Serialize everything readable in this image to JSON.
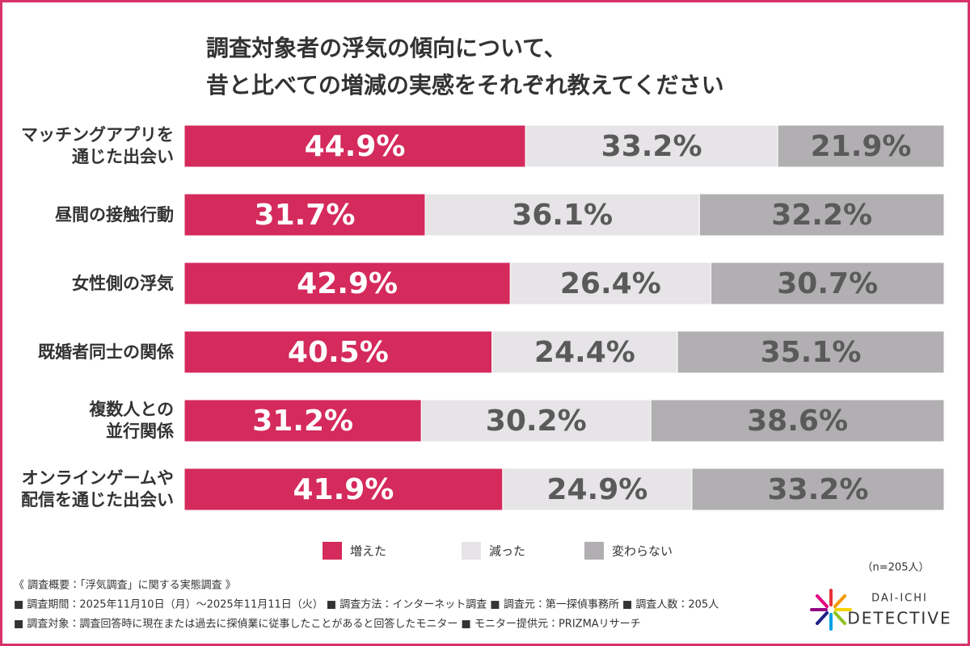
{
  "chart_data": {
    "type": "stacked-bar-horizontal",
    "title": [
      "調査対象者の浮気の傾向について、",
      "昔と比べての増減の実感をそれぞれ教えてください"
    ],
    "categories": [
      "マッチングアプリを\n通じた出会い",
      "昼間の接触行動",
      "女性側の浮気",
      "既婚者同士の関係",
      "複数人との\n並行関係",
      "オンラインゲームや\n配信を通じた出会い"
    ],
    "series": [
      {
        "name": "増えた",
        "color": "#d42a5c",
        "label_color": "#ffffff",
        "values": [
          44.9,
          31.7,
          42.9,
          40.5,
          31.2,
          41.9
        ],
        "value_labels": [
          "44.9%",
          "31.7%",
          "42.9%",
          "40.5%",
          "31.2%",
          "41.9%"
        ]
      },
      {
        "name": "減った",
        "color": "#e6e4e7",
        "label_color": "#5a5a5a",
        "values": [
          33.2,
          36.1,
          26.4,
          24.4,
          30.2,
          24.9
        ],
        "value_labels": [
          "33.2%",
          "36.1%",
          "26.4%",
          "24.4%",
          "30.2%",
          "24.9%"
        ]
      },
      {
        "name": "変わらない",
        "color": "#b1afb1",
        "label_color": "#5a5a5a",
        "values": [
          21.9,
          32.2,
          30.7,
          35.1,
          38.6,
          33.2
        ],
        "value_labels": [
          "21.9%",
          "32.2%",
          "30.7%",
          "35.1%",
          "38.6%",
          "33.2%"
        ]
      }
    ],
    "note": "（n=205人）"
  },
  "footer": {
    "lines": [
      "《 調査概要：「浮気調査」に関する実態調査 》",
      "■ 調査期間：2025年11月10日（月）〜2025年11月11日（火） ■ 調査方法：インターネット調査 ■ 調査元：第一探偵事務所 ■ 調査人数：205人",
      "■ 調査対象：調査回答時に現在または過去に探偵業に従事したことがあると回答したモニター ■ モニター提供元：PRIZMAリサーチ"
    ]
  },
  "logo": {
    "top": "DAI-ICHI",
    "bottom": "DETECTIVE"
  }
}
